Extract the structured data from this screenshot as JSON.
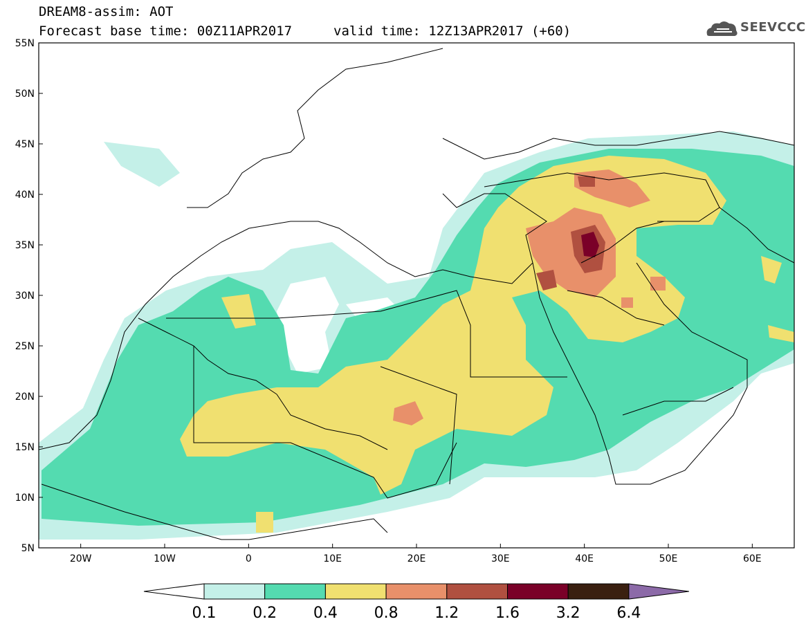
{
  "header": {
    "line1": "DREAM8-assim: AOT",
    "line2": "Forecast base time: 00Z11APR2017",
    "valid": "valid time: 12Z13APR2017 (+60)",
    "logo_text": "SEEVCCC",
    "logo_icon": "cloud-logo-icon"
  },
  "map": {
    "lat_labels": [
      "55N",
      "50N",
      "45N",
      "40N",
      "35N",
      "30N",
      "25N",
      "20N",
      "15N",
      "10N",
      "5N"
    ],
    "lon_labels": [
      "20W",
      "10W",
      "0",
      "10E",
      "20E",
      "30E",
      "40E",
      "50E",
      "60E"
    ],
    "lat_range": [
      5,
      55
    ],
    "lon_range": [
      -25,
      65
    ],
    "colors": {
      "c0_1": "#c4f0e8",
      "c0_2": "#54dbb0",
      "c0_4": "#f0e070",
      "c0_8": "#e8906a",
      "c1_2": "#b05040",
      "c1_6": "#7a0028",
      "c3_2": "#3a2010",
      "c6_4": "#8c6aa8"
    }
  },
  "colorbar": {
    "labels": [
      "0.1",
      "0.2",
      "0.4",
      "0.8",
      "1.2",
      "1.6",
      "3.2",
      "6.4"
    ],
    "bins": [
      "#ffffff",
      "#c4f0e8",
      "#54dbb0",
      "#f0e070",
      "#e8906a",
      "#b05040",
      "#7a0028",
      "#3a2010",
      "#8c6aa8"
    ]
  }
}
